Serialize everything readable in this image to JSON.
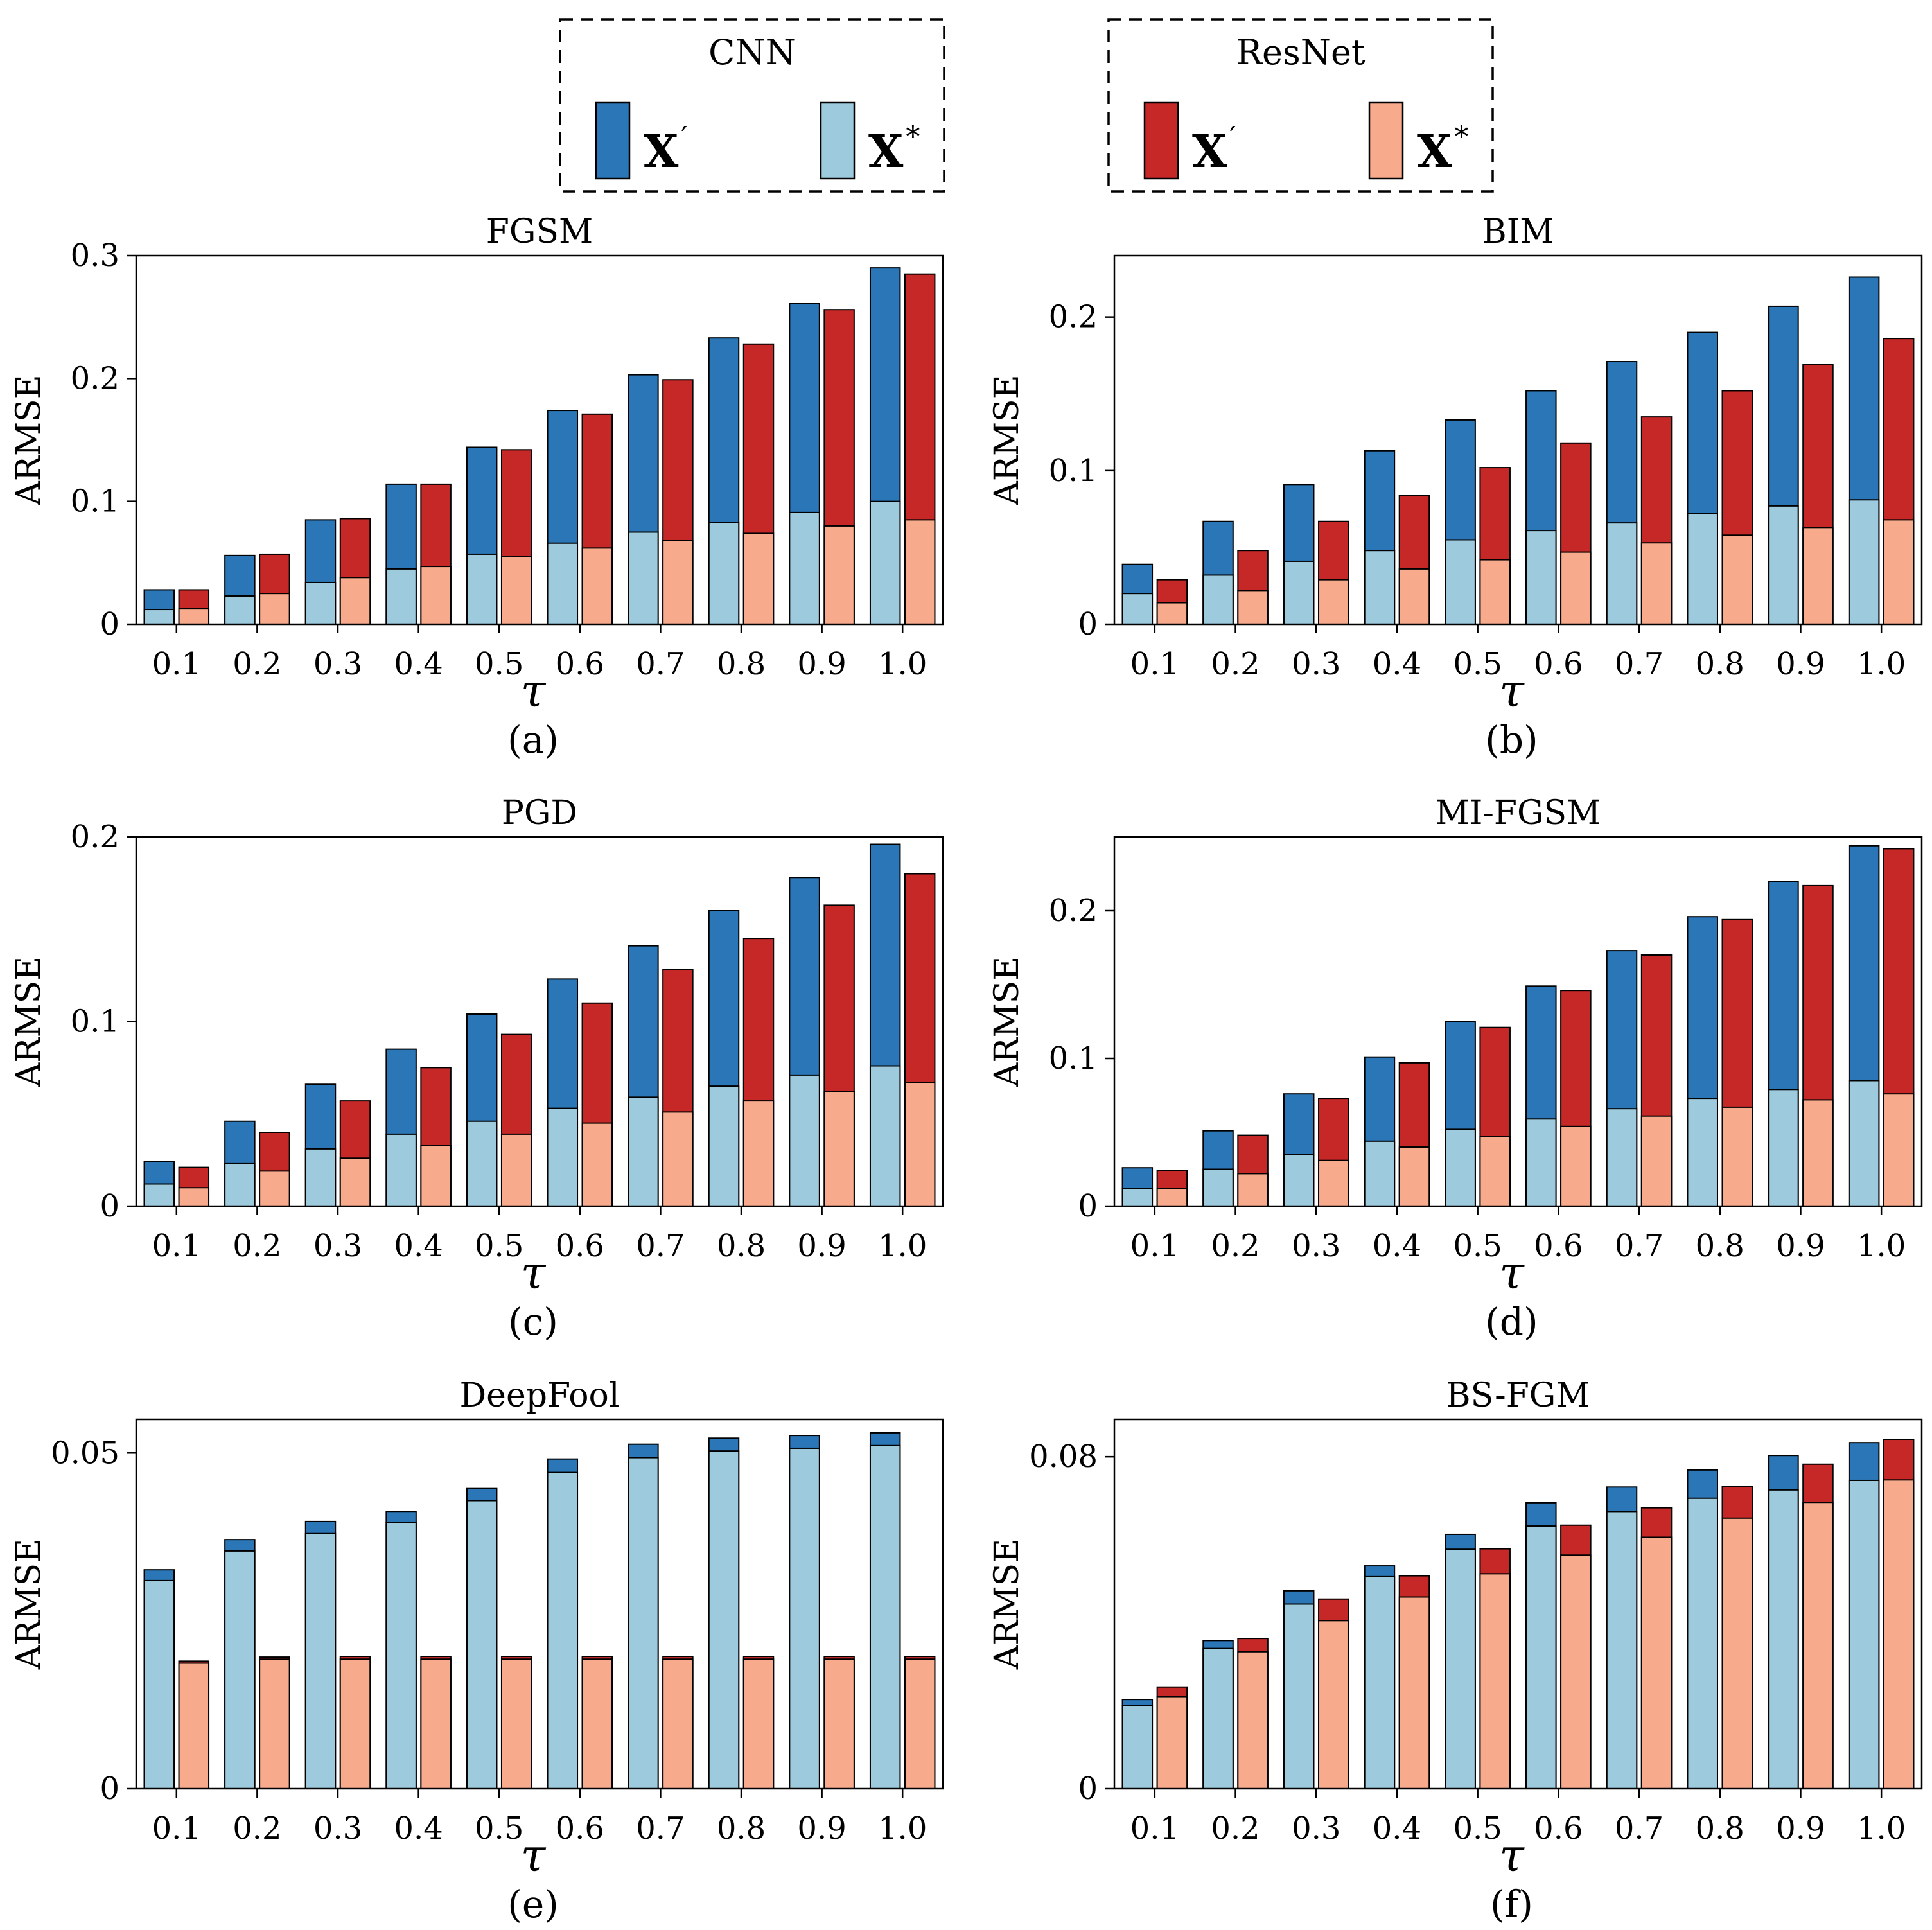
{
  "colors": {
    "cnn_adv": "#2b76b6",
    "cnn_pur": "#9ecadd",
    "res_adv": "#c62828",
    "res_pur": "#f7aa8c"
  },
  "legend": [
    {
      "title": "CNN",
      "items": [
        {
          "label": "X",
          "sup": "′",
          "color": "#2b76b6"
        },
        {
          "label": "X",
          "sup": "*",
          "color": "#9ecadd"
        }
      ]
    },
    {
      "title": "ResNet",
      "items": [
        {
          "label": "X",
          "sup": "′",
          "color": "#c62828"
        },
        {
          "label": "X",
          "sup": "*",
          "color": "#f7aa8c"
        }
      ]
    }
  ],
  "chart_data": [
    {
      "type": "bar",
      "title": "FGSM",
      "caption": "(a)",
      "xlabel": "τ",
      "ylabel": "ARMSE",
      "categories": [
        "0.1",
        "0.2",
        "0.3",
        "0.4",
        "0.5",
        "0.6",
        "0.7",
        "0.8",
        "0.9",
        "1.0"
      ],
      "ylim": [
        0,
        0.3
      ],
      "yticks": [
        0,
        0.1,
        0.2,
        0.3
      ],
      "yticklabels": [
        "0",
        "0.1",
        "0.2",
        "0.3"
      ],
      "series": [
        {
          "name": "CNN X′",
          "values": [
            0.028,
            0.056,
            0.085,
            0.114,
            0.144,
            0.174,
            0.203,
            0.233,
            0.261,
            0.29
          ]
        },
        {
          "name": "CNN X*",
          "values": [
            0.012,
            0.023,
            0.034,
            0.045,
            0.057,
            0.066,
            0.075,
            0.083,
            0.091,
            0.1
          ]
        },
        {
          "name": "ResNet X′",
          "values": [
            0.028,
            0.057,
            0.086,
            0.114,
            0.142,
            0.171,
            0.199,
            0.228,
            0.256,
            0.285
          ]
        },
        {
          "name": "ResNet X*",
          "values": [
            0.013,
            0.025,
            0.038,
            0.047,
            0.055,
            0.062,
            0.068,
            0.074,
            0.08,
            0.085
          ]
        }
      ]
    },
    {
      "type": "bar",
      "title": "BIM",
      "caption": "(b)",
      "xlabel": "τ",
      "ylabel": "ARMSE",
      "categories": [
        "0.1",
        "0.2",
        "0.3",
        "0.4",
        "0.5",
        "0.6",
        "0.7",
        "0.8",
        "0.9",
        "1.0"
      ],
      "ylim": [
        0,
        0.24
      ],
      "yticks": [
        0,
        0.1,
        0.2
      ],
      "yticklabels": [
        "0",
        "0.1",
        "0.2"
      ],
      "series": [
        {
          "name": "CNN X′",
          "values": [
            0.039,
            0.067,
            0.091,
            0.113,
            0.133,
            0.152,
            0.171,
            0.19,
            0.207,
            0.226
          ]
        },
        {
          "name": "CNN X*",
          "values": [
            0.02,
            0.032,
            0.041,
            0.048,
            0.055,
            0.061,
            0.066,
            0.072,
            0.077,
            0.081
          ]
        },
        {
          "name": "ResNet X′",
          "values": [
            0.029,
            0.048,
            0.067,
            0.084,
            0.102,
            0.118,
            0.135,
            0.152,
            0.169,
            0.186
          ]
        },
        {
          "name": "ResNet X*",
          "values": [
            0.014,
            0.022,
            0.029,
            0.036,
            0.042,
            0.047,
            0.053,
            0.058,
            0.063,
            0.068
          ]
        }
      ]
    },
    {
      "type": "bar",
      "title": "PGD",
      "caption": "(c)",
      "xlabel": "τ",
      "ylabel": "ARMSE",
      "categories": [
        "0.1",
        "0.2",
        "0.3",
        "0.4",
        "0.5",
        "0.6",
        "0.7",
        "0.8",
        "0.9",
        "1.0"
      ],
      "ylim": [
        0,
        0.2
      ],
      "yticks": [
        0,
        0.1,
        0.2
      ],
      "yticklabels": [
        "0",
        "0.1",
        "0.2"
      ],
      "series": [
        {
          "name": "CNN X′",
          "values": [
            0.024,
            0.046,
            0.066,
            0.085,
            0.104,
            0.123,
            0.141,
            0.16,
            0.178,
            0.196
          ]
        },
        {
          "name": "CNN X*",
          "values": [
            0.012,
            0.023,
            0.031,
            0.039,
            0.046,
            0.053,
            0.059,
            0.065,
            0.071,
            0.076
          ]
        },
        {
          "name": "ResNet X′",
          "values": [
            0.021,
            0.04,
            0.057,
            0.075,
            0.093,
            0.11,
            0.128,
            0.145,
            0.163,
            0.18
          ]
        },
        {
          "name": "ResNet X*",
          "values": [
            0.01,
            0.019,
            0.026,
            0.033,
            0.039,
            0.045,
            0.051,
            0.057,
            0.062,
            0.067
          ]
        }
      ]
    },
    {
      "type": "bar",
      "title": "MI-FGSM",
      "caption": "(d)",
      "xlabel": "τ",
      "ylabel": "ARMSE",
      "categories": [
        "0.1",
        "0.2",
        "0.3",
        "0.4",
        "0.5",
        "0.6",
        "0.7",
        "0.8",
        "0.9",
        "1.0"
      ],
      "ylim": [
        0,
        0.25
      ],
      "yticks": [
        0,
        0.1,
        0.2
      ],
      "yticklabels": [
        "0",
        "0.1",
        "0.2"
      ],
      "series": [
        {
          "name": "CNN X′",
          "values": [
            0.026,
            0.051,
            0.076,
            0.101,
            0.125,
            0.149,
            0.173,
            0.196,
            0.22,
            0.244
          ]
        },
        {
          "name": "CNN X*",
          "values": [
            0.012,
            0.025,
            0.035,
            0.044,
            0.052,
            0.059,
            0.066,
            0.073,
            0.079,
            0.085
          ]
        },
        {
          "name": "ResNet X′",
          "values": [
            0.024,
            0.048,
            0.073,
            0.097,
            0.121,
            0.146,
            0.17,
            0.194,
            0.217,
            0.242
          ]
        },
        {
          "name": "ResNet X*",
          "values": [
            0.012,
            0.022,
            0.031,
            0.04,
            0.047,
            0.054,
            0.061,
            0.067,
            0.072,
            0.076
          ]
        }
      ]
    },
    {
      "type": "bar",
      "title": "DeepFool",
      "caption": "(e)",
      "xlabel": "τ",
      "ylabel": "ARMSE",
      "categories": [
        "0.1",
        "0.2",
        "0.3",
        "0.4",
        "0.5",
        "0.6",
        "0.7",
        "0.8",
        "0.9",
        "1.0"
      ],
      "ylim": [
        0,
        0.055
      ],
      "yticks": [
        0,
        0.05
      ],
      "yticklabels": [
        "0",
        "0.05"
      ],
      "series": [
        {
          "name": "CNN X′",
          "values": [
            0.0326,
            0.0371,
            0.0398,
            0.0413,
            0.0447,
            0.0491,
            0.0513,
            0.0522,
            0.0526,
            0.053
          ]
        },
        {
          "name": "CNN X*",
          "values": [
            0.031,
            0.0354,
            0.038,
            0.0396,
            0.0429,
            0.0471,
            0.0493,
            0.0503,
            0.0507,
            0.0511
          ]
        },
        {
          "name": "ResNet X′",
          "values": [
            0.019,
            0.0196,
            0.0197,
            0.0197,
            0.0197,
            0.0197,
            0.0197,
            0.0197,
            0.0197,
            0.0197
          ]
        },
        {
          "name": "ResNet X*",
          "values": [
            0.0187,
            0.0193,
            0.0193,
            0.0193,
            0.0193,
            0.0193,
            0.0193,
            0.0193,
            0.0193,
            0.0193
          ]
        }
      ]
    },
    {
      "type": "bar",
      "title": "BS-FGM",
      "caption": "(f)",
      "xlabel": "τ",
      "ylabel": "ARMSE",
      "categories": [
        "0.1",
        "0.2",
        "0.3",
        "0.4",
        "0.5",
        "0.6",
        "0.7",
        "0.8",
        "0.9",
        "1.0"
      ],
      "ylim": [
        0,
        0.089
      ],
      "yticks": [
        0,
        0.08
      ],
      "yticklabels": [
        "0",
        "0.08"
      ],
      "series": [
        {
          "name": "CNN X′",
          "values": [
            0.0215,
            0.0357,
            0.0477,
            0.0537,
            0.0613,
            0.0689,
            0.0727,
            0.0768,
            0.0803,
            0.0834
          ]
        },
        {
          "name": "CNN X*",
          "values": [
            0.02,
            0.0338,
            0.0445,
            0.0511,
            0.0577,
            0.0633,
            0.0668,
            0.07,
            0.072,
            0.0743
          ]
        },
        {
          "name": "ResNet X′",
          "values": [
            0.0245,
            0.0362,
            0.0457,
            0.0513,
            0.0578,
            0.0635,
            0.0677,
            0.0729,
            0.0782,
            0.0842
          ]
        },
        {
          "name": "ResNet X*",
          "values": [
            0.0222,
            0.033,
            0.0405,
            0.0462,
            0.0518,
            0.0563,
            0.0606,
            0.0652,
            0.069,
            0.0744
          ]
        }
      ]
    }
  ]
}
